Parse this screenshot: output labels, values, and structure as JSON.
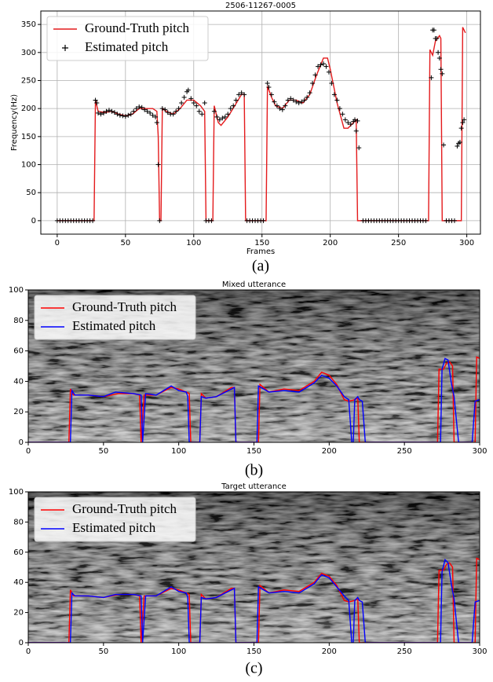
{
  "chart_data": [
    {
      "type": "line",
      "title": "2506-11267-0005",
      "xlabel": "Frames",
      "ylabel": "Frequency(Hz)",
      "caption": "(a)",
      "xlim": [
        -12,
        310
      ],
      "ylim": [
        -24,
        374
      ],
      "xticks": [
        0,
        50,
        100,
        150,
        200,
        250,
        300
      ],
      "yticks": [
        0,
        50,
        100,
        150,
        200,
        250,
        300,
        350
      ],
      "grid": true,
      "legend": "upper left",
      "series": [
        {
          "name": "Ground-Truth pitch",
          "style": "line",
          "color": "#e41a1c",
          "x": [
            0,
            27,
            28,
            30,
            35,
            40,
            45,
            50,
            55,
            60,
            65,
            70,
            73,
            74,
            75,
            76,
            77,
            80,
            85,
            90,
            95,
            100,
            105,
            108,
            109,
            114,
            115,
            118,
            120,
            125,
            130,
            135,
            137,
            138,
            153,
            154,
            157,
            160,
            165,
            170,
            175,
            180,
            185,
            190,
            195,
            198,
            200,
            205,
            210,
            213,
            217,
            219,
            220,
            272,
            273,
            275,
            277,
            280,
            281,
            282,
            296,
            297,
            299
          ],
          "values": [
            0,
            0,
            215,
            195,
            193,
            195,
            190,
            187,
            190,
            200,
            200,
            200,
            195,
            150,
            0,
            0,
            200,
            195,
            190,
            200,
            215,
            215,
            205,
            195,
            0,
            0,
            205,
            175,
            170,
            185,
            205,
            225,
            225,
            0,
            0,
            240,
            220,
            205,
            200,
            215,
            215,
            210,
            225,
            260,
            290,
            290,
            270,
            210,
            165,
            165,
            175,
            180,
            0,
            0,
            305,
            295,
            320,
            330,
            325,
            0,
            0,
            345,
            335
          ]
        },
        {
          "name": "Estimated pitch",
          "style": "scatter",
          "color": "#000000",
          "x": [
            0,
            2,
            4,
            6,
            8,
            10,
            12,
            14,
            16,
            18,
            20,
            22,
            24,
            26,
            28,
            29,
            30,
            32,
            34,
            36,
            38,
            40,
            42,
            44,
            46,
            48,
            50,
            52,
            54,
            56,
            58,
            60,
            62,
            64,
            66,
            68,
            70,
            72,
            73,
            74,
            75,
            77,
            79,
            81,
            83,
            85,
            87,
            89,
            91,
            93,
            95,
            96,
            98,
            100,
            102,
            104,
            106,
            108,
            109,
            111,
            113,
            115,
            117,
            119,
            121,
            123,
            125,
            127,
            129,
            131,
            133,
            135,
            137,
            139,
            141,
            143,
            145,
            147,
            149,
            151,
            154,
            155,
            157,
            159,
            161,
            163,
            165,
            167,
            169,
            171,
            173,
            175,
            177,
            179,
            181,
            183,
            185,
            187,
            189,
            191,
            193,
            195,
            197,
            199,
            201,
            203,
            205,
            207,
            209,
            211,
            213,
            215,
            217,
            218,
            219,
            220,
            221,
            224,
            226,
            228,
            230,
            232,
            234,
            236,
            238,
            240,
            242,
            244,
            246,
            248,
            250,
            252,
            254,
            256,
            258,
            260,
            262,
            264,
            266,
            268,
            270,
            274,
            275,
            276,
            277,
            278,
            279,
            280,
            281,
            282,
            283,
            285,
            287,
            289,
            291,
            293,
            294,
            295,
            296,
            297,
            298
          ],
          "values": [
            0,
            0,
            0,
            0,
            0,
            0,
            0,
            0,
            0,
            0,
            0,
            0,
            0,
            0,
            215,
            210,
            192,
            190,
            192,
            195,
            197,
            195,
            193,
            190,
            188,
            187,
            186,
            188,
            190,
            195,
            200,
            203,
            202,
            198,
            195,
            192,
            188,
            185,
            175,
            100,
            0,
            200,
            198,
            193,
            190,
            190,
            195,
            200,
            210,
            220,
            230,
            233,
            218,
            210,
            205,
            195,
            190,
            210,
            0,
            0,
            0,
            195,
            185,
            180,
            183,
            185,
            190,
            200,
            205,
            215,
            225,
            228,
            225,
            0,
            0,
            0,
            0,
            0,
            0,
            0,
            245,
            238,
            225,
            212,
            205,
            200,
            198,
            205,
            215,
            218,
            215,
            212,
            210,
            212,
            215,
            220,
            228,
            245,
            260,
            275,
            278,
            280,
            275,
            265,
            245,
            225,
            215,
            200,
            190,
            180,
            175,
            172,
            177,
            180,
            160,
            178,
            130,
            0,
            0,
            0,
            0,
            0,
            0,
            0,
            0,
            0,
            0,
            0,
            0,
            0,
            0,
            0,
            0,
            0,
            0,
            0,
            0,
            0,
            0,
            0,
            0,
            255,
            340,
            340,
            325,
            325,
            300,
            290,
            270,
            262,
            135,
            0,
            0,
            0,
            0,
            133,
            138,
            140,
            165,
            175,
            180
          ]
        }
      ]
    },
    {
      "type": "line",
      "title": "Mixed utterance",
      "caption": "(b)",
      "xlim": [
        0,
        300
      ],
      "ylim": [
        0,
        100
      ],
      "xticks": [
        0,
        50,
        100,
        150,
        200,
        250,
        300
      ],
      "yticks": [
        0,
        20,
        40,
        60,
        80,
        100
      ],
      "grid": false,
      "legend": "upper left",
      "series": [
        {
          "name": "Ground-Truth pitch",
          "style": "line",
          "color": "#ff0000",
          "x": [
            0,
            27,
            28,
            30,
            40,
            50,
            60,
            70,
            74,
            75,
            77,
            85,
            95,
            100,
            105,
            107,
            108,
            114,
            115,
            118,
            125,
            135,
            137,
            138,
            153,
            154,
            160,
            170,
            180,
            190,
            195,
            200,
            205,
            210,
            213,
            217,
            219,
            220,
            272,
            273,
            276,
            278,
            280,
            282,
            283,
            297,
            298,
            300
          ],
          "values": [
            0,
            0,
            35,
            31,
            31,
            30,
            32,
            32,
            31,
            0,
            31,
            31,
            36,
            35,
            33,
            32,
            0,
            0,
            32,
            29,
            30,
            36,
            36,
            0,
            0,
            38,
            33,
            35,
            34,
            40,
            46,
            44,
            38,
            28,
            27,
            28,
            29,
            0,
            0,
            48,
            48,
            52,
            53,
            50,
            0,
            0,
            56,
            55
          ]
        },
        {
          "name": "Estimated pitch",
          "style": "line",
          "color": "#0000ff",
          "x": [
            0,
            28,
            29,
            31,
            40,
            50,
            58,
            70,
            75,
            76,
            78,
            85,
            95,
            100,
            105,
            106,
            107,
            114,
            115,
            118,
            125,
            135,
            137,
            138,
            152,
            153,
            160,
            170,
            180,
            190,
            195,
            200,
            205,
            210,
            213,
            215,
            216,
            217,
            219,
            220,
            222,
            224,
            225,
            274,
            275,
            277,
            279,
            281,
            283,
            286,
            295,
            297,
            300
          ],
          "values": [
            0,
            0,
            34,
            31,
            31,
            30,
            33,
            32,
            31,
            0,
            32,
            31,
            37,
            34,
            33,
            30,
            0,
            0,
            30,
            29,
            30,
            35,
            36,
            0,
            0,
            37,
            33,
            34,
            33,
            39,
            44,
            42,
            37,
            30,
            28,
            0,
            0,
            28,
            30,
            28,
            27,
            0,
            0,
            0,
            48,
            55,
            54,
            40,
            30,
            0,
            0,
            27,
            28
          ]
        }
      ]
    },
    {
      "type": "line",
      "title": "Target utterance",
      "caption": "(c)",
      "xlim": [
        0,
        300
      ],
      "ylim": [
        0,
        100
      ],
      "xticks": [
        0,
        50,
        100,
        150,
        200,
        250,
        300
      ],
      "yticks": [
        0,
        20,
        40,
        60,
        80,
        100
      ],
      "grid": false,
      "legend": "upper left",
      "series": [
        {
          "name": "Ground-Truth pitch",
          "style": "line",
          "color": "#ff0000",
          "x": [
            0,
            27,
            28,
            30,
            40,
            50,
            60,
            70,
            74,
            75,
            77,
            85,
            95,
            100,
            105,
            107,
            108,
            114,
            115,
            118,
            125,
            135,
            137,
            138,
            153,
            154,
            160,
            170,
            180,
            190,
            195,
            200,
            205,
            210,
            213,
            217,
            219,
            220,
            272,
            273,
            276,
            278,
            280,
            282,
            283,
            297,
            298,
            300
          ],
          "values": [
            0,
            0,
            35,
            31,
            31,
            30,
            32,
            32,
            31,
            0,
            31,
            31,
            36,
            35,
            33,
            32,
            0,
            0,
            32,
            29,
            30,
            36,
            36,
            0,
            0,
            38,
            33,
            35,
            34,
            40,
            46,
            44,
            38,
            28,
            27,
            28,
            29,
            0,
            0,
            48,
            48,
            52,
            53,
            50,
            0,
            0,
            56,
            55
          ]
        },
        {
          "name": "Estimated pitch",
          "style": "line",
          "color": "#0000ff",
          "x": [
            0,
            28,
            29,
            31,
            40,
            50,
            58,
            70,
            75,
            76,
            78,
            85,
            95,
            100,
            105,
            106,
            107,
            114,
            115,
            118,
            125,
            135,
            137,
            138,
            152,
            153,
            160,
            170,
            180,
            190,
            195,
            200,
            205,
            210,
            213,
            215,
            216,
            217,
            219,
            220,
            222,
            224,
            225,
            274,
            275,
            277,
            279,
            281,
            283,
            286,
            295,
            297,
            300
          ],
          "values": [
            0,
            0,
            33,
            31,
            31,
            30,
            32,
            32,
            31,
            0,
            31,
            31,
            37,
            34,
            33,
            30,
            0,
            0,
            30,
            29,
            30,
            35,
            36,
            0,
            0,
            37,
            33,
            34,
            33,
            39,
            45,
            43,
            37,
            31,
            28,
            0,
            0,
            28,
            30,
            28,
            27,
            0,
            0,
            0,
            47,
            55,
            53,
            40,
            29,
            0,
            0,
            27,
            28
          ]
        }
      ]
    }
  ]
}
